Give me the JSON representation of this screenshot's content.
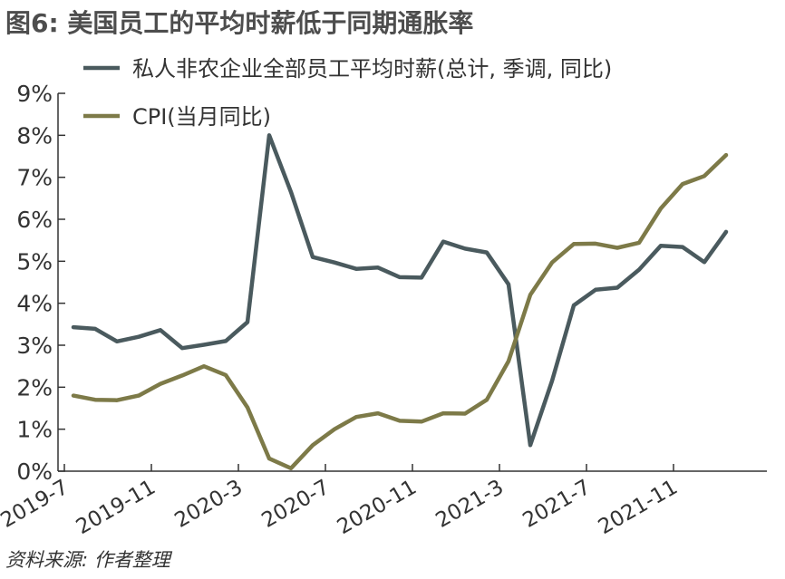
{
  "title": "图6: 美国员工的平均时薪低于同期通胀率",
  "source": "资料来源: 作者整理",
  "chart_data": {
    "type": "line",
    "title": "图6: 美国员工的平均时薪低于同期通胀率",
    "xlabel": "",
    "ylabel": "",
    "ylim": [
      0,
      9
    ],
    "yticks": [
      "0%",
      "1%",
      "2%",
      "3%",
      "4%",
      "5%",
      "6%",
      "7%",
      "8%",
      "9%"
    ],
    "xtick_labels": [
      "2019-7",
      "2019-11",
      "2020-3",
      "2020-7",
      "2020-11",
      "2021-3",
      "2021-7",
      "2021-11"
    ],
    "x": [
      "2019-7",
      "2019-8",
      "2019-9",
      "2019-10",
      "2019-11",
      "2019-12",
      "2020-1",
      "2020-2",
      "2020-3",
      "2020-4",
      "2020-5",
      "2020-6",
      "2020-7",
      "2020-8",
      "2020-9",
      "2020-10",
      "2020-11",
      "2020-12",
      "2021-1",
      "2021-2",
      "2021-3",
      "2021-4",
      "2021-5",
      "2021-6",
      "2021-7",
      "2021-8",
      "2021-9",
      "2021-10",
      "2021-11",
      "2021-12",
      "2022-1"
    ],
    "grid": false,
    "legend_position": "top-left",
    "series": [
      {
        "name": "私人非农企业全部员工平均时薪(总计, 季调, 同比)",
        "color": "#4a5a5e",
        "values": [
          3.43,
          3.39,
          3.09,
          3.2,
          3.36,
          2.93,
          3.01,
          3.1,
          3.55,
          8.0,
          6.65,
          5.1,
          4.97,
          4.82,
          4.85,
          4.62,
          4.61,
          5.47,
          5.3,
          5.21,
          4.45,
          0.62,
          2.15,
          3.95,
          4.32,
          4.37,
          4.8,
          5.37,
          5.34,
          4.98,
          5.7
        ]
      },
      {
        "name": "CPI(当月同比)",
        "color": "#7d7a48",
        "values": [
          1.8,
          1.7,
          1.69,
          1.8,
          2.08,
          2.28,
          2.5,
          2.29,
          1.52,
          0.3,
          0.07,
          0.62,
          1.0,
          1.29,
          1.38,
          1.2,
          1.18,
          1.38,
          1.37,
          1.7,
          2.62,
          4.2,
          4.97,
          5.41,
          5.42,
          5.32,
          5.44,
          6.26,
          6.84,
          7.03,
          7.53
        ]
      }
    ]
  }
}
